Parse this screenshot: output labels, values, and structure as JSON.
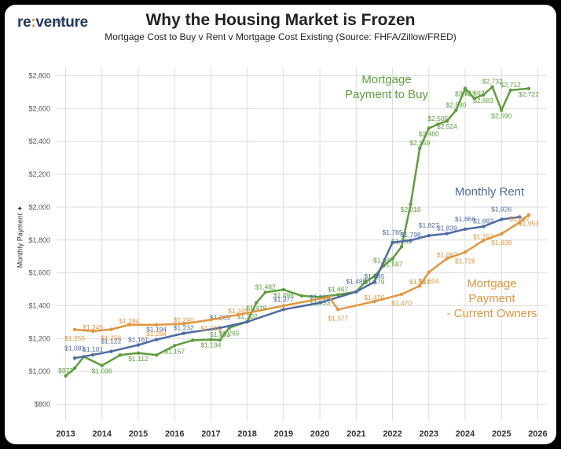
{
  "brand": {
    "logo_pre": "re",
    "logo_sym": ":",
    "logo_post": "venture",
    "logo_sub": "APP"
  },
  "header": {
    "title": "Why the Housing Market is Frozen",
    "subtitle": "Mortgage Cost to Buy v Rent v Mortgage Cost Existing (Source: FHFA/Zillow/FRED)"
  },
  "colors": {
    "buy": "#5d9e3c",
    "rent": "#4d6aa3",
    "existing": "#e0963f",
    "grid": "#dcdcdc"
  },
  "chart_data": {
    "type": "line",
    "title": "Why the Housing Market is Frozen",
    "ylabel": "Monthly Payment",
    "xlabel": "",
    "ylim": [
      700,
      2850
    ],
    "xlim": [
      2012.75,
      2026.25
    ],
    "yticks": [
      800,
      1000,
      1200,
      1400,
      1600,
      1800,
      2000,
      2200,
      2400,
      2600,
      2800
    ],
    "ytick_labels": [
      "$800",
      "$1,000",
      "$1,200",
      "$1,400",
      "$1,600",
      "$1,800",
      "$2,000",
      "$2,200",
      "$2,400",
      "$2,600",
      "$2,800"
    ],
    "xticks": [
      "2013",
      "2014",
      "2015",
      "2016",
      "2017",
      "2018",
      "2019",
      "2020",
      "2021",
      "2022",
      "2023",
      "2024",
      "2025",
      "2026"
    ],
    "grid": true,
    "series": [
      {
        "name": "Mortgage Payment to Buy",
        "annotation": [
          "Mortgage",
          "Payment to Buy"
        ],
        "color_key": "buy",
        "points": [
          [
            2013.0,
            973,
            "$973"
          ],
          [
            2013.25,
            1020,
            ""
          ],
          [
            2013.5,
            1090,
            ""
          ],
          [
            2014.0,
            1036,
            "$1,036"
          ],
          [
            2014.5,
            1100,
            ""
          ],
          [
            2015.0,
            1112,
            "$1,112"
          ],
          [
            2015.5,
            1100,
            ""
          ],
          [
            2016.0,
            1157,
            "$1,157"
          ],
          [
            2016.5,
            1190,
            ""
          ],
          [
            2017.0,
            1194,
            "$1,194"
          ],
          [
            2017.25,
            1191,
            "$1,191"
          ],
          [
            2017.5,
            1265,
            "$1,265"
          ],
          [
            2018.0,
            1302,
            "$1,302"
          ],
          [
            2018.25,
            1418,
            "$1,418"
          ],
          [
            2018.5,
            1482,
            "$1,482"
          ],
          [
            2019.0,
            1498,
            "$1,498"
          ],
          [
            2019.5,
            1460,
            ""
          ],
          [
            2020.0,
            1453,
            "$1,453"
          ],
          [
            2020.5,
            1467,
            "$1,467"
          ],
          [
            2021.0,
            1485,
            ""
          ],
          [
            2021.25,
            1545,
            ""
          ],
          [
            2021.5,
            1579,
            "$1,579"
          ],
          [
            2021.75,
            1643,
            "$1,643"
          ],
          [
            2022.0,
            1687,
            "$1,687"
          ],
          [
            2022.25,
            1759,
            "$1,759"
          ],
          [
            2022.5,
            2018,
            "$2,018"
          ],
          [
            2022.75,
            2359,
            "$2,359"
          ],
          [
            2023.0,
            2480,
            "$2,480"
          ],
          [
            2023.25,
            2505,
            "$2,505"
          ],
          [
            2023.5,
            2524,
            "$2,524"
          ],
          [
            2023.75,
            2590,
            "$2,590"
          ],
          [
            2024.0,
            2723,
            "$2,723"
          ],
          [
            2024.25,
            2662,
            "$2,662"
          ],
          [
            2024.5,
            2683,
            "$2,683"
          ],
          [
            2024.75,
            2732,
            "$2,732"
          ],
          [
            2025.0,
            2590,
            "$2,590"
          ],
          [
            2025.25,
            2712,
            "$2,712"
          ],
          [
            2025.75,
            2722,
            "$2,722"
          ]
        ]
      },
      {
        "name": "Monthly Rent",
        "annotation": [
          "Monthly Rent"
        ],
        "color_key": "rent",
        "points": [
          [
            2013.25,
            1081,
            "$1,081"
          ],
          [
            2013.75,
            1101,
            "$1,101"
          ],
          [
            2014.25,
            1122,
            "$1,122"
          ],
          [
            2015.0,
            1161,
            "$1,161"
          ],
          [
            2015.5,
            1194,
            "$1,194"
          ],
          [
            2016.25,
            1232,
            "$1,232"
          ],
          [
            2017.25,
            1265,
            "$1,265"
          ],
          [
            2018.0,
            1302,
            ""
          ],
          [
            2019.0,
            1377,
            "$1,377"
          ],
          [
            2020.0,
            1418,
            "$1,418"
          ],
          [
            2021.0,
            1485,
            "$1,485"
          ],
          [
            2021.5,
            1545,
            "$1,545"
          ],
          [
            2022.0,
            1785,
            "$1,785"
          ],
          [
            2022.5,
            1798,
            "$1,798"
          ],
          [
            2023.0,
            1827,
            "$1,827"
          ],
          [
            2023.5,
            1839,
            "$1,839"
          ],
          [
            2024.0,
            1866,
            "$1,866"
          ],
          [
            2024.5,
            1882,
            "$1,882"
          ],
          [
            2025.0,
            1926,
            "$1,926"
          ],
          [
            2025.5,
            1940,
            ""
          ]
        ]
      },
      {
        "name": "Mortgage Payment - Current Owners",
        "annotation": [
          "Mortgage",
          "Payment",
          "- Current Owners"
        ],
        "color_key": "existing",
        "points": [
          [
            2013.25,
            1255,
            "$1,255"
          ],
          [
            2013.75,
            1245,
            "$1,245"
          ],
          [
            2014.25,
            1256,
            "$1,256"
          ],
          [
            2014.75,
            1284,
            "$1,284"
          ],
          [
            2015.5,
            1284,
            "$1,284"
          ],
          [
            2016.25,
            1290,
            "$1,290"
          ],
          [
            2017.0,
            1315,
            "$1,315"
          ],
          [
            2017.75,
            1345,
            "$1,345"
          ],
          [
            2019.0,
            1400,
            ""
          ],
          [
            2020.25,
            1453,
            ""
          ],
          [
            2020.5,
            1377,
            "$1,377"
          ],
          [
            2021.5,
            1426,
            "$1,426"
          ],
          [
            2022.25,
            1470,
            "$1,470"
          ],
          [
            2022.75,
            1521,
            "$1,521"
          ],
          [
            2023.0,
            1604,
            "$1,604"
          ],
          [
            2023.5,
            1687,
            "$1,687"
          ],
          [
            2024.0,
            1726,
            "$1,726"
          ],
          [
            2024.5,
            1797,
            "$1,797"
          ],
          [
            2025.0,
            1838,
            "$1,838"
          ],
          [
            2025.5,
            1907,
            "$1,907"
          ],
          [
            2025.75,
            1953,
            "$1,953"
          ]
        ]
      }
    ]
  }
}
